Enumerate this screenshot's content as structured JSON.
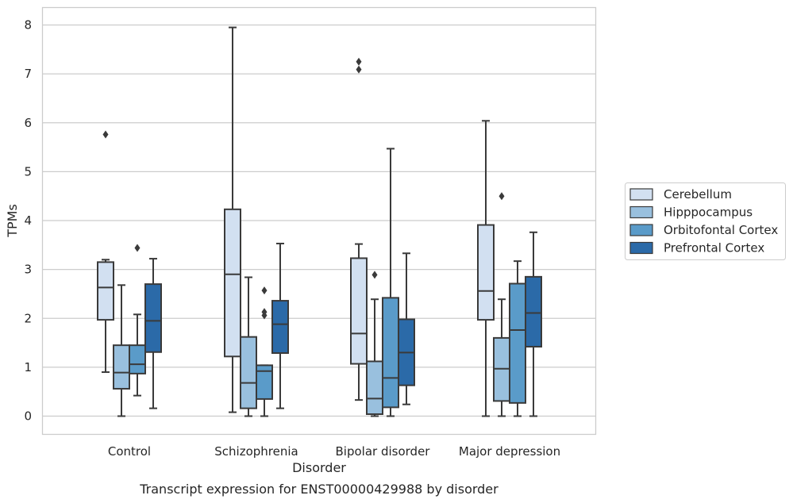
{
  "chart_data": {
    "type": "box",
    "xlabel": "Disorder",
    "ylabel": "TPMs",
    "caption": "Transcript expression for ENST00000429988 by disorder",
    "ylim": [
      -0.38,
      8.35
    ],
    "yticks": [
      0,
      1,
      2,
      3,
      4,
      5,
      6,
      7,
      8
    ],
    "grid": "horizontal",
    "legend_position": "right",
    "categories": [
      "Control",
      "Schizophrenia",
      "Bipolar disorder",
      "Major depression"
    ],
    "series": [
      {
        "name": "Cerebellum",
        "color": "#d2e0f1",
        "boxes": [
          {
            "whisker_low": 0.9,
            "q1": 1.97,
            "median": 2.63,
            "q3": 3.15,
            "whisker_high": 3.2,
            "outliers": [
              5.76
            ]
          },
          {
            "whisker_low": 0.08,
            "q1": 1.22,
            "median": 2.9,
            "q3": 4.23,
            "whisker_high": 7.95,
            "outliers": []
          },
          {
            "whisker_low": 0.33,
            "q1": 1.07,
            "median": 1.69,
            "q3": 3.23,
            "whisker_high": 3.52,
            "outliers": [
              7.09,
              7.25
            ]
          },
          {
            "whisker_low": 0.0,
            "q1": 1.97,
            "median": 2.56,
            "q3": 3.91,
            "whisker_high": 6.04,
            "outliers": []
          }
        ]
      },
      {
        "name": "Hipppocampus",
        "color": "#99c0de",
        "boxes": [
          {
            "whisker_low": 0.0,
            "q1": 0.56,
            "median": 0.89,
            "q3": 1.45,
            "whisker_high": 2.68,
            "outliers": []
          },
          {
            "whisker_low": 0.0,
            "q1": 0.16,
            "median": 0.68,
            "q3": 1.62,
            "whisker_high": 2.84,
            "outliers": []
          },
          {
            "whisker_low": 0.0,
            "q1": 0.04,
            "median": 0.36,
            "q3": 1.12,
            "whisker_high": 2.39,
            "outliers": [
              2.89
            ]
          },
          {
            "whisker_low": 0.0,
            "q1": 0.31,
            "median": 0.97,
            "q3": 1.6,
            "whisker_high": 2.39,
            "outliers": [
              4.5
            ]
          }
        ]
      },
      {
        "name": "Orbitofontal Cortex",
        "color": "#5a9bc9",
        "boxes": [
          {
            "whisker_low": 0.42,
            "q1": 0.87,
            "median": 1.06,
            "q3": 1.45,
            "whisker_high": 2.08,
            "outliers": [
              3.44
            ]
          },
          {
            "whisker_low": 0.0,
            "q1": 0.35,
            "median": 0.92,
            "q3": 1.04,
            "whisker_high": 1.04,
            "outliers": [
              2.06,
              2.13,
              2.57
            ]
          },
          {
            "whisker_low": 0.0,
            "q1": 0.18,
            "median": 0.78,
            "q3": 2.42,
            "whisker_high": 5.47,
            "outliers": []
          },
          {
            "whisker_low": 0.0,
            "q1": 0.27,
            "median": 1.76,
            "q3": 2.71,
            "whisker_high": 3.17,
            "outliers": []
          }
        ]
      },
      {
        "name": "Prefrontal Cortex",
        "color": "#2b6aa8",
        "boxes": [
          {
            "whisker_low": 0.16,
            "q1": 1.31,
            "median": 1.95,
            "q3": 2.7,
            "whisker_high": 3.22,
            "outliers": []
          },
          {
            "whisker_low": 0.16,
            "q1": 1.29,
            "median": 1.88,
            "q3": 2.36,
            "whisker_high": 3.53,
            "outliers": []
          },
          {
            "whisker_low": 0.24,
            "q1": 0.63,
            "median": 1.3,
            "q3": 1.98,
            "whisker_high": 3.33,
            "outliers": []
          },
          {
            "whisker_low": 0.0,
            "q1": 1.42,
            "median": 2.11,
            "q3": 2.85,
            "whisker_high": 3.76,
            "outliers": []
          }
        ]
      }
    ]
  }
}
